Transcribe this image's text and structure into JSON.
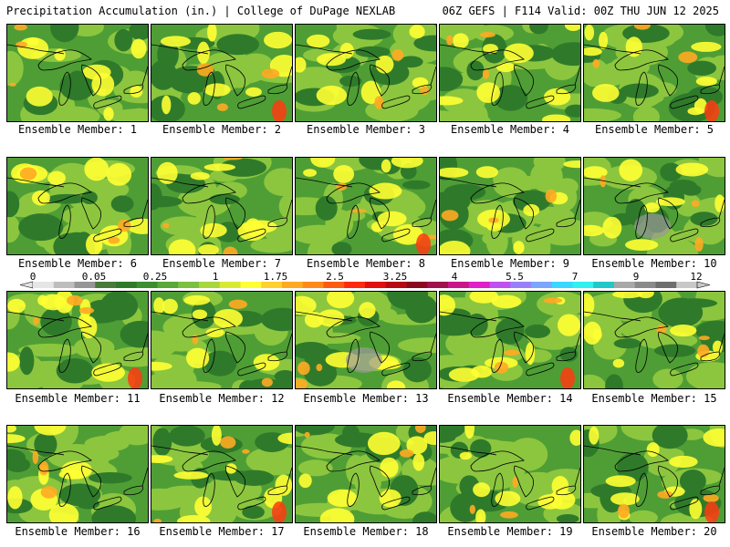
{
  "header": {
    "left": "Precipitation Accumulation (in.) | College of DuPage NEXLAB",
    "right": "06Z GEFS | F114 Valid: 00Z THU JUN 12 2025"
  },
  "members": [
    {
      "label": "Ensemble Member: 1"
    },
    {
      "label": "Ensemble Member: 2"
    },
    {
      "label": "Ensemble Member: 3"
    },
    {
      "label": "Ensemble Member: 4"
    },
    {
      "label": "Ensemble Member: 5"
    },
    {
      "label": "Ensemble Member: 6"
    },
    {
      "label": "Ensemble Member: 7"
    },
    {
      "label": "Ensemble Member: 8"
    },
    {
      "label": "Ensemble Member: 9"
    },
    {
      "label": "Ensemble Member: 10"
    },
    {
      "label": "Ensemble Member: 11"
    },
    {
      "label": "Ensemble Member: 12"
    },
    {
      "label": "Ensemble Member: 13"
    },
    {
      "label": "Ensemble Member: 14"
    },
    {
      "label": "Ensemble Member: 15"
    },
    {
      "label": "Ensemble Member: 16"
    },
    {
      "label": "Ensemble Member: 17"
    },
    {
      "label": "Ensemble Member: 18"
    },
    {
      "label": "Ensemble Member: 19"
    },
    {
      "label": "Ensemble Member: 20"
    }
  ],
  "colorbar": {
    "labels": [
      "0",
      "0.05",
      "0.25",
      "1",
      "1.75",
      "2.5",
      "3.25",
      "4",
      "5.5",
      "7",
      "9",
      "12"
    ],
    "colors": [
      "#e6e6e6",
      "#bdbdbd",
      "#969696",
      "#4a7a3a",
      "#2f7a2a",
      "#3a8f2e",
      "#59a83a",
      "#7cc040",
      "#a8d63c",
      "#d8ea30",
      "#ffff33",
      "#ffd030",
      "#ffaa22",
      "#ff8a1a",
      "#ff5a12",
      "#ff2a10",
      "#e01010",
      "#b80a14",
      "#8c0a20",
      "#a0124c",
      "#c8168a",
      "#e020c8",
      "#c050f0",
      "#9a80f8",
      "#7aa6ff",
      "#3ad8ff",
      "#30f0f0",
      "#20c8c8",
      "#a8a8a8",
      "#8a8a8a",
      "#6e6e6e",
      "#c8c8c8"
    ]
  },
  "colors": {
    "dark_green": "#2f7a2a",
    "green": "#4f9e35",
    "light_green": "#8cc63f",
    "yellow": "#ffff33",
    "orange": "#ffaa22",
    "red": "#ff3a10",
    "gray": "#9a9a9a"
  }
}
